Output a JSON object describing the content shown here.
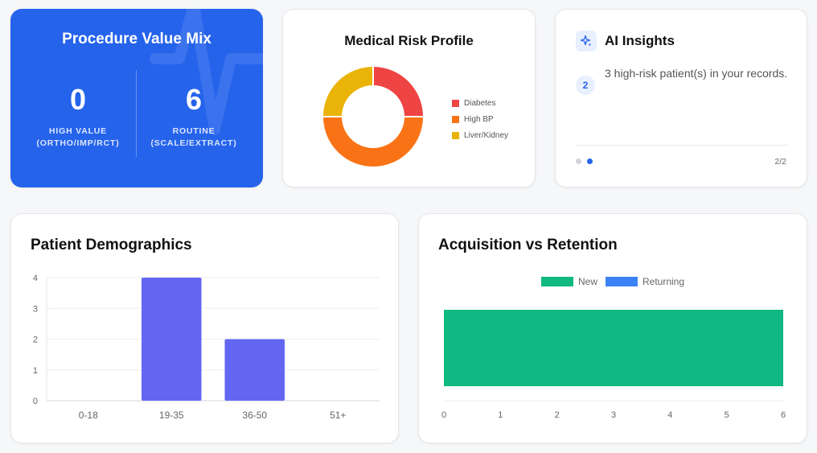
{
  "procedure": {
    "title": "Procedure Value Mix",
    "high_value": {
      "value": "0",
      "label_line1": "HIGH VALUE",
      "label_line2": "(ORTHO/IMP/RCT)"
    },
    "routine": {
      "value": "6",
      "label_line1": "ROUTINE",
      "label_line2": "(SCALE/EXTRACT)"
    },
    "bg_color": "#2563eb"
  },
  "risk": {
    "title": "Medical Risk Profile",
    "legend": [
      {
        "label": "Diabetes",
        "color": "#ef4444"
      },
      {
        "label": "High BP",
        "color": "#f97316"
      },
      {
        "label": "Liver/Kidney",
        "color": "#eab308"
      }
    ]
  },
  "insights": {
    "icon": "sparkle-icon",
    "title": "AI Insights",
    "badge": "2",
    "text": "3 high-risk patient(s) in your records.",
    "pager": "2/2",
    "current_page": 2,
    "total_pages": 2
  },
  "demographics": {
    "title": "Patient Demographics"
  },
  "acquisition": {
    "title": "Acquisition vs Retention"
  },
  "chart_data": [
    {
      "type": "pie",
      "title": "Medical Risk Profile",
      "donut": true,
      "categories": [
        "Diabetes",
        "High BP",
        "Liver/Kidney"
      ],
      "values": [
        1,
        2,
        1
      ],
      "colors": [
        "#ef4444",
        "#f97316",
        "#eab308"
      ],
      "legend": "right"
    },
    {
      "type": "bar",
      "title": "Patient Demographics",
      "categories": [
        "0-18",
        "19-35",
        "36-50",
        "51+"
      ],
      "values": [
        0,
        4,
        2,
        0
      ],
      "ylim": [
        0,
        4
      ],
      "yticks": [
        "0",
        "1",
        "2",
        "3",
        "4"
      ],
      "color": "#6366f1",
      "grid": true
    },
    {
      "type": "bar",
      "orientation": "horizontal",
      "title": "Acquisition vs Retention",
      "series": [
        {
          "name": "New",
          "values": [
            6
          ],
          "color": "#10b981"
        },
        {
          "name": "Returning",
          "values": [
            0
          ],
          "color": "#3b82f6"
        }
      ],
      "xlim": [
        0,
        6
      ],
      "xticks": [
        "0",
        "1",
        "2",
        "3",
        "4",
        "5",
        "6"
      ],
      "legend": "top",
      "stacked": true
    }
  ]
}
